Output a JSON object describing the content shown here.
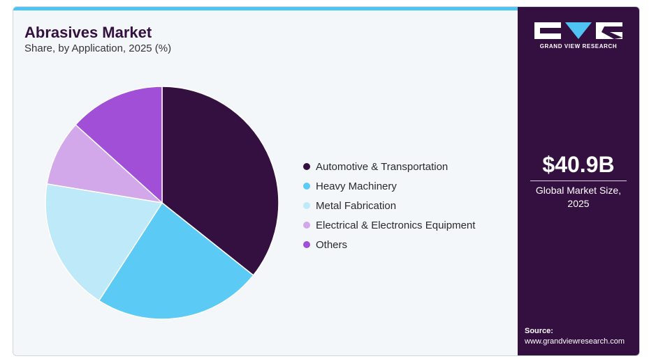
{
  "header": {
    "title": "Abrasives Market",
    "subtitle": "Share, by Application, 2025 (%)"
  },
  "chart_data": {
    "type": "pie",
    "title": "Abrasives Market",
    "subtitle": "Share, by Application, 2025 (%)",
    "legend_position": "right",
    "slices": [
      {
        "label": "Automotive & Transportation",
        "value": 35.7,
        "color": "#33103f"
      },
      {
        "label": "Heavy Machinery",
        "value": 23.4,
        "color": "#5bcbf5"
      },
      {
        "label": "Metal Fabrication",
        "value": 18.5,
        "color": "#bde9f9"
      },
      {
        "label": "Electrical & Electronics Equipment",
        "value": 9.1,
        "color": "#d3a8eb"
      },
      {
        "label": "Others",
        "value": 13.3,
        "color": "#a24fd8"
      }
    ]
  },
  "sidebar": {
    "brand": "GRAND VIEW RESEARCH",
    "market_size": "$40.9B",
    "market_size_label_line1": "Global Market Size,",
    "market_size_label_line2": "2025",
    "source_label": "Source:",
    "source_url": "www.grandviewresearch.com"
  },
  "colors": {
    "brand_dark": "#33103f",
    "accent": "#4fc3f2",
    "background": "#f3f7fa"
  }
}
